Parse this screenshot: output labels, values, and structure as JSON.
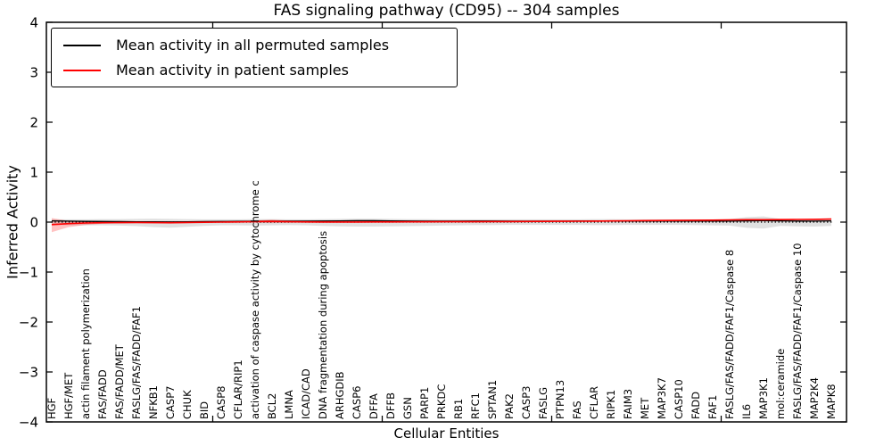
{
  "chart_data": {
    "type": "line",
    "title": "FAS signaling pathway (CD95) -- 304 samples",
    "xlabel": "Cellular Entities",
    "ylabel": "Inferred Activity",
    "ylim": [
      -4,
      4
    ],
    "ytick_values": [
      4,
      3,
      2,
      1,
      0,
      -1,
      -2,
      -3,
      -4
    ],
    "ytick_labels": [
      "4",
      "3",
      "2",
      "1",
      "0",
      "−1",
      "−2",
      "−3",
      "−4"
    ],
    "xtick_positions": [
      10,
      20,
      30,
      40
    ],
    "grid": false,
    "legend_position": "upper left",
    "zero_line": {
      "style": "dotted",
      "color": "#000000"
    },
    "categories": [
      "HGF",
      "HGF/MET",
      "actin filament polymerization",
      "FAS/FADD",
      "FAS/FADD/MET",
      "FASLG/FAS/FADD/FAF1",
      "NFKB1",
      "CASP7",
      "CHUK",
      "BID",
      "CASP8",
      "CFLAR/RIP1",
      "activation of caspase activity by cytochrome c",
      "BCL2",
      "LMNA",
      "ICAD/CAD",
      "DNA fragmentation during apoptosis",
      "ARHGDIB",
      "CASP6",
      "DFFA",
      "DFFB",
      "GSN",
      "PARP1",
      "PRKDC",
      "RB1",
      "RFC1",
      "SPTAN1",
      "PAK2",
      "CASP3",
      "FASLG",
      "PTPN13",
      "FAS",
      "CFLAR",
      "RIPK1",
      "FAIM3",
      "MET",
      "MAP3K7",
      "CASP10",
      "FADD",
      "FAF1",
      "FASLG/FAS/FADD/FAF1/Caspase 8",
      "IL6",
      "MAP3K1",
      "mol:ceramide",
      "FASLG/FAS/FADD/FAF1/Caspase 10",
      "MAP2K4",
      "MAPK8"
    ],
    "series": [
      {
        "name": "Mean activity in all permuted samples",
        "color": "#000000",
        "values": [
          0.025,
          0.02,
          0.015,
          0.012,
          0.01,
          0.008,
          0.005,
          0.004,
          0.006,
          0.01,
          0.012,
          0.015,
          0.018,
          0.02,
          0.02,
          0.02,
          0.022,
          0.025,
          0.028,
          0.028,
          0.025,
          0.022,
          0.02,
          0.02,
          0.02,
          0.022,
          0.022,
          0.02,
          0.02,
          0.02,
          0.02,
          0.022,
          0.022,
          0.02,
          0.02,
          0.02,
          0.02,
          0.022,
          0.02,
          0.02,
          0.02,
          0.025,
          0.028,
          0.025,
          0.022,
          0.02,
          0.025
        ]
      },
      {
        "name": "Mean activity in patient samples",
        "color": "#ff0000",
        "values": [
          -0.05,
          -0.03,
          -0.018,
          -0.012,
          -0.01,
          -0.008,
          -0.01,
          -0.012,
          -0.008,
          -0.004,
          0.0,
          0.004,
          0.01,
          0.014,
          0.008,
          0.004,
          0.002,
          0.002,
          0.002,
          0.004,
          0.004,
          0.006,
          0.006,
          0.008,
          0.008,
          0.008,
          0.01,
          0.01,
          0.012,
          0.014,
          0.016,
          0.018,
          0.02,
          0.024,
          0.026,
          0.03,
          0.032,
          0.034,
          0.038,
          0.04,
          0.044,
          0.048,
          0.048,
          0.05,
          0.054,
          0.056,
          0.06
        ]
      }
    ],
    "bands": [
      {
        "name": "permuted-samples-spread-band",
        "color": "#999999",
        "opacity": 0.3,
        "upper": [
          0.055,
          0.055,
          0.055,
          0.06,
          0.06,
          0.065,
          0.07,
          0.065,
          0.06,
          0.055,
          0.055,
          0.055,
          0.06,
          0.06,
          0.055,
          0.055,
          0.06,
          0.065,
          0.07,
          0.07,
          0.065,
          0.06,
          0.06,
          0.055,
          0.055,
          0.055,
          0.055,
          0.055,
          0.055,
          0.055,
          0.055,
          0.055,
          0.06,
          0.06,
          0.055,
          0.055,
          0.055,
          0.055,
          0.055,
          0.055,
          0.06,
          0.1,
          0.115,
          0.065,
          0.06,
          0.065,
          0.07
        ],
        "lower": [
          -0.055,
          -0.06,
          -0.065,
          -0.065,
          -0.07,
          -0.08,
          -0.1,
          -0.11,
          -0.095,
          -0.075,
          -0.065,
          -0.065,
          -0.07,
          -0.065,
          -0.06,
          -0.065,
          -0.075,
          -0.085,
          -0.09,
          -0.09,
          -0.085,
          -0.08,
          -0.075,
          -0.07,
          -0.065,
          -0.06,
          -0.06,
          -0.055,
          -0.055,
          -0.055,
          -0.055,
          -0.055,
          -0.06,
          -0.06,
          -0.055,
          -0.055,
          -0.055,
          -0.055,
          -0.06,
          -0.065,
          -0.07,
          -0.115,
          -0.13,
          -0.075,
          -0.085,
          -0.09,
          -0.075
        ]
      },
      {
        "name": "patient-samples-spread-band",
        "color": "#ff0000",
        "opacity": 0.24,
        "upper": [
          0.08,
          0.025,
          0.012,
          0.006,
          0.004,
          0.004,
          0.004,
          0.004,
          0.004,
          0.006,
          0.008,
          0.012,
          0.032,
          0.048,
          0.03,
          0.014,
          0.01,
          0.008,
          0.008,
          0.01,
          0.01,
          0.012,
          0.012,
          0.014,
          0.014,
          0.014,
          0.016,
          0.016,
          0.018,
          0.02,
          0.022,
          0.024,
          0.026,
          0.03,
          0.032,
          0.036,
          0.038,
          0.04,
          0.044,
          0.046,
          0.05,
          0.054,
          0.054,
          0.056,
          0.062,
          0.064,
          0.07
        ],
        "lower": [
          -0.2,
          -0.1,
          -0.055,
          -0.032,
          -0.024,
          -0.02,
          -0.024,
          -0.028,
          -0.02,
          -0.014,
          -0.008,
          -0.004,
          -0.012,
          -0.02,
          -0.014,
          -0.006,
          -0.006,
          -0.004,
          -0.004,
          -0.002,
          -0.002,
          0.0,
          0.0,
          0.002,
          0.002,
          0.002,
          0.004,
          0.004,
          0.006,
          0.008,
          0.01,
          0.012,
          0.014,
          0.018,
          0.02,
          0.024,
          0.026,
          0.028,
          0.032,
          0.034,
          0.038,
          0.042,
          0.042,
          0.044,
          0.046,
          0.048,
          0.05
        ]
      }
    ]
  }
}
